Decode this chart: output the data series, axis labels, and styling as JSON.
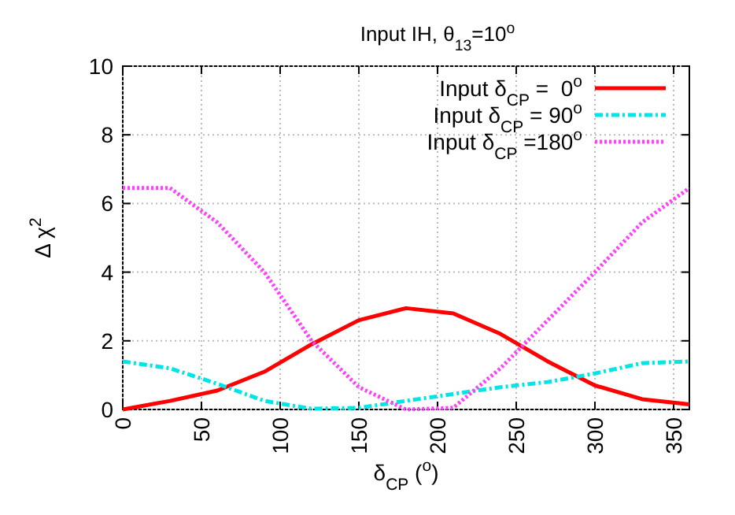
{
  "chart_data": {
    "type": "line",
    "title": "Input IH, θ$_{13}$=10$^{o}$",
    "xlabel": "δ$_{CP}$ ($^{o}$)",
    "ylabel": "Δ χ$^{2}$",
    "x": [
      0,
      30,
      60,
      90,
      120,
      150,
      180,
      210,
      240,
      270,
      300,
      330,
      360
    ],
    "xlim": [
      0,
      360
    ],
    "xticks": [
      0,
      50,
      100,
      150,
      200,
      250,
      300,
      350
    ],
    "ylim": [
      0,
      10
    ],
    "yticks": [
      0,
      2,
      4,
      6,
      8,
      10
    ],
    "grid": true,
    "legend": "top right",
    "series": [
      {
        "name": "Input δ$_{CP}$ =  0$^{o}$",
        "color": "#ff0000",
        "line_style": "solid",
        "values": [
          0,
          0.25,
          0.55,
          1.1,
          1.9,
          2.6,
          2.95,
          2.8,
          2.2,
          1.4,
          0.7,
          0.3,
          0.15
        ]
      },
      {
        "name": "Input δ$_{CP}$ = 90$^{o}$",
        "color": "#00e5e5",
        "line_style": "dashdot",
        "values": [
          1.4,
          1.2,
          0.75,
          0.25,
          0.02,
          0.05,
          0.25,
          0.45,
          0.65,
          0.8,
          1.05,
          1.35,
          1.4
        ]
      },
      {
        "name": "Input δ$_{CP}$ =180$^{o}$",
        "color": "#ff40ff",
        "line_style": "dotted",
        "values": [
          6.45,
          6.45,
          5.45,
          4.0,
          2.0,
          0.65,
          0,
          0.05,
          1.2,
          2.6,
          4.0,
          5.45,
          6.45
        ]
      }
    ]
  }
}
